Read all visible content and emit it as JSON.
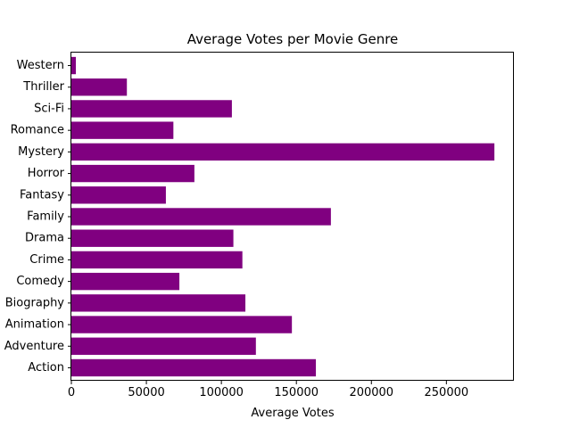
{
  "chart_data": {
    "type": "bar",
    "orientation": "horizontal",
    "title": "Average Votes per Movie Genre",
    "xlabel": "Average Votes",
    "ylabel": "",
    "xlim": [
      0,
      295000
    ],
    "xticks": [
      0,
      50000,
      100000,
      150000,
      200000,
      250000
    ],
    "grid": false,
    "bar_color": "#800080",
    "categories": [
      "Action",
      "Adventure",
      "Animation",
      "Biography",
      "Comedy",
      "Crime",
      "Drama",
      "Family",
      "Fantasy",
      "Horror",
      "Mystery",
      "Romance",
      "Sci-Fi",
      "Thriller",
      "Western"
    ],
    "values": [
      163000,
      123000,
      147000,
      116000,
      72000,
      114000,
      108000,
      173000,
      63000,
      82000,
      282000,
      68000,
      107000,
      37000,
      3000
    ]
  }
}
